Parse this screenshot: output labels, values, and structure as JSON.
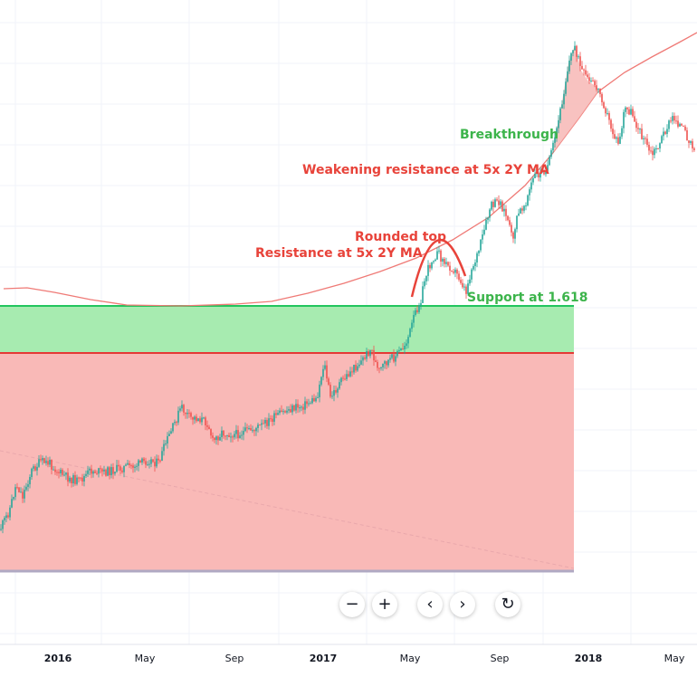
{
  "chart_data": {
    "type": "candlestick",
    "x_axis": {
      "ticks": [
        "2016",
        "May",
        "Sep",
        "2017",
        "May",
        "Sep",
        "2018",
        "May"
      ]
    },
    "y_scale": "log",
    "colors": {
      "up": "#26a69a",
      "down": "#ef5350",
      "ma": "#ef5350",
      "support_line": "#22c55e",
      "resistance_line": "#e53935",
      "green_zone": "#a7ebb0",
      "red_zone": "#f9b9b7",
      "bottom_line": "#b0a9c3",
      "annotation_green": "#3cb44b",
      "annotation_red": "#e8433a"
    },
    "annotations": [
      {
        "name": "breakthrough",
        "text": "Breakthrough",
        "color": "green"
      },
      {
        "name": "weakening-resistance",
        "text": "Weakening resistance at 5x 2Y MA",
        "color": "red"
      },
      {
        "name": "rounded-top",
        "text": "Rounded top",
        "color": "red"
      },
      {
        "name": "resistance",
        "text": "Resistance at 5x 2Y MA",
        "color": "red"
      },
      {
        "name": "support",
        "text": "Support at 1.618",
        "color": "green"
      }
    ],
    "levels": [
      {
        "name": "support-1618",
        "label": "1.618",
        "color": "green"
      },
      {
        "name": "resistance-level",
        "color": "red"
      }
    ]
  },
  "controls": [
    {
      "name": "zoom-out-button",
      "glyph": "−"
    },
    {
      "name": "zoom-in-button",
      "glyph": "+"
    },
    {
      "name": "scroll-left-button",
      "glyph": "‹"
    },
    {
      "name": "scroll-right-button",
      "glyph": "›"
    },
    {
      "name": "reset-button",
      "glyph": "↻"
    }
  ]
}
